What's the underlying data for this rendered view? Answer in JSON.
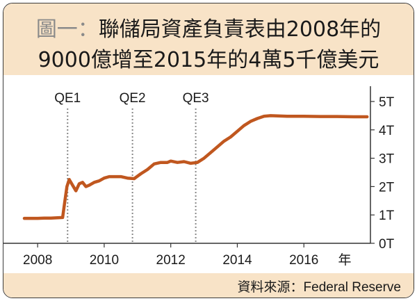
{
  "title": {
    "prefix": "圖一：",
    "line1": "聯儲局資產負責表由2008年的",
    "line2": "9000億增至2015年的4萬5千億美元"
  },
  "source": "資料來源：Federal Reserve",
  "colors": {
    "line": "#c0571f",
    "header_bg": "#f8e3c7",
    "qe_line": "#888888"
  },
  "chart_data": {
    "type": "line",
    "title": "圖一：聯儲局資產負責表由2008年的 9000億增至2015年的4萬5千億美元",
    "xlabel": "年",
    "ylabel": "",
    "xlim": [
      2007.6,
      2018.0
    ],
    "ylim": [
      0,
      5
    ],
    "y_axis_side": "right",
    "grid": false,
    "x_ticks": [
      2008,
      2010,
      2012,
      2014,
      2016
    ],
    "x_tick_labels": [
      "2008",
      "2010",
      "2012",
      "2014",
      "2016"
    ],
    "y_ticks": [
      0,
      1,
      2,
      3,
      4,
      5
    ],
    "y_tick_labels": [
      "0T",
      "1T",
      "2T",
      "3T",
      "4T",
      "5T"
    ],
    "annotations": [
      {
        "label": "QE1",
        "x": 2008.9
      },
      {
        "label": "QE2",
        "x": 2010.85
      },
      {
        "label": "QE3",
        "x": 2012.75
      }
    ],
    "series": [
      {
        "x": [
          2007.6,
          2007.8,
          2008.0,
          2008.2,
          2008.4,
          2008.6,
          2008.75,
          2008.82,
          2008.88,
          2008.95,
          2009.05,
          2009.15,
          2009.25,
          2009.35,
          2009.45,
          2009.55,
          2009.7,
          2009.85,
          2010.0,
          2010.15,
          2010.3,
          2010.5,
          2010.7,
          2010.9,
          2011.1,
          2011.3,
          2011.5,
          2011.7,
          2011.9,
          2012.0,
          2012.2,
          2012.4,
          2012.6,
          2012.8,
          2013.0,
          2013.2,
          2013.4,
          2013.6,
          2013.8,
          2014.0,
          2014.2,
          2014.4,
          2014.6,
          2014.8,
          2015.0,
          2015.5,
          2016.0,
          2016.5,
          2017.0,
          2017.5,
          2017.9
        ],
        "y": [
          0.88,
          0.88,
          0.88,
          0.89,
          0.89,
          0.9,
          0.91,
          1.5,
          2.0,
          2.25,
          2.05,
          1.85,
          2.1,
          2.15,
          2.0,
          2.05,
          2.15,
          2.2,
          2.3,
          2.35,
          2.35,
          2.35,
          2.3,
          2.28,
          2.45,
          2.6,
          2.8,
          2.85,
          2.85,
          2.9,
          2.85,
          2.88,
          2.82,
          2.85,
          3.0,
          3.2,
          3.4,
          3.6,
          3.75,
          3.95,
          4.15,
          4.3,
          4.4,
          4.48,
          4.5,
          4.48,
          4.48,
          4.47,
          4.47,
          4.46,
          4.46
        ]
      }
    ]
  }
}
